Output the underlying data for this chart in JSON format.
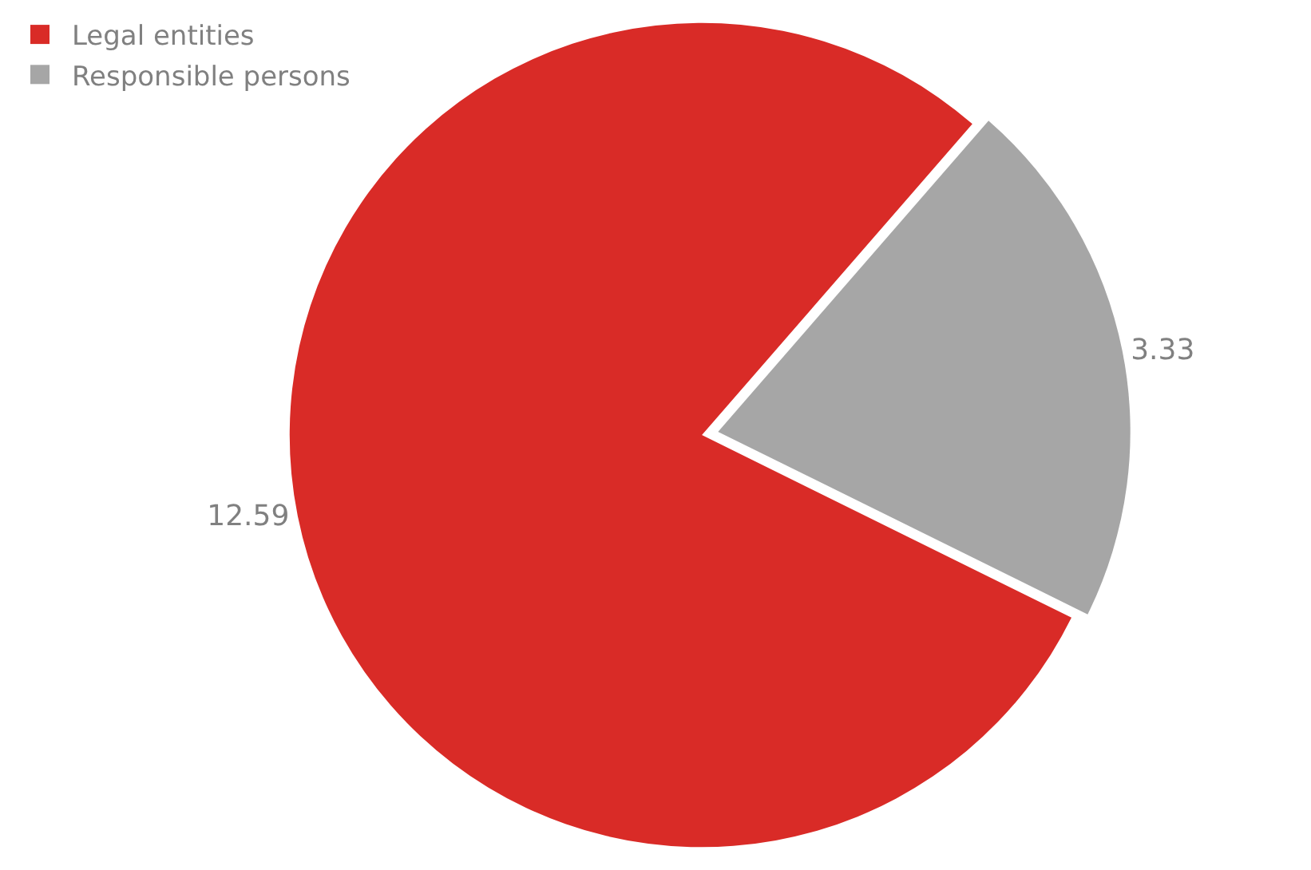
{
  "chart_data": {
    "type": "pie",
    "categories": [
      "Legal entities",
      "Responsible persons"
    ],
    "values": [
      12.59,
      3.33
    ],
    "colors": [
      "#d92b27",
      "#a6a6a6"
    ],
    "data_labels": true,
    "legend": "top left"
  }
}
